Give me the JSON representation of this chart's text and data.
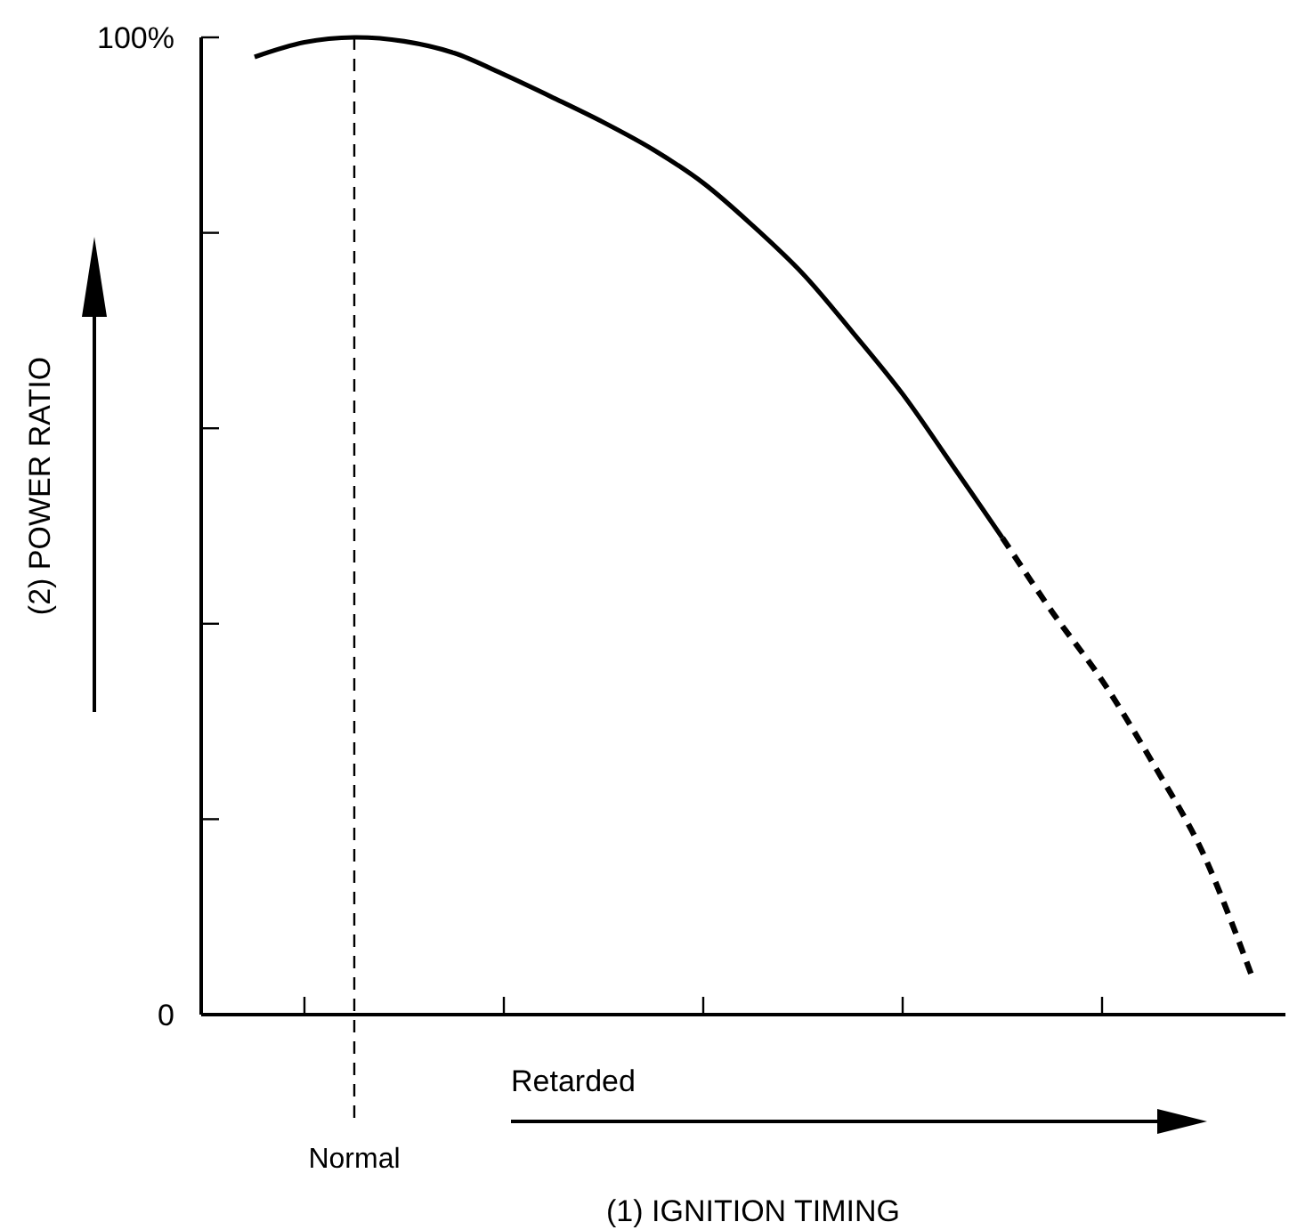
{
  "chart_data": {
    "type": "line",
    "ylabel": "(2) POWER RATIO",
    "categories": [
      null,
      null,
      null,
      null,
      null,
      null,
      null,
      null,
      null,
      null,
      null,
      null,
      null,
      null,
      null,
      null,
      null,
      null,
      null,
      null,
      null
    ],
    "series": [
      {
        "color": "#000000",
        "line_style": "solid",
        "values": [
          98,
          99.5,
          100,
          99.6,
          98.4,
          96.2,
          93.8,
          91.3,
          88.5,
          85.1,
          80.7,
          75.8,
          69.8,
          63.5,
          56.2,
          48.8,
          null,
          null,
          null,
          null,
          null
        ]
      },
      {
        "color": "#000000",
        "line_style": "dashed",
        "values": [
          null,
          null,
          null,
          null,
          null,
          null,
          null,
          null,
          null,
          null,
          null,
          null,
          null,
          null,
          null,
          48.8,
          41.2,
          34.2,
          25.9,
          16.8,
          4
        ]
      }
    ],
    "ylim": [
      0,
      100
    ],
    "yticks": [
      {
        "value": 0,
        "label": "0"
      },
      {
        "value": 20,
        "label": null
      },
      {
        "value": 40,
        "label": null
      },
      {
        "value": 60,
        "label": null
      },
      {
        "value": 80,
        "label": null
      },
      {
        "value": 100,
        "label": "100%"
      }
    ],
    "annotations": [
      "Retarded",
      "(1) IGNITION TIMING",
      "Normal"
    ],
    "grid": false,
    "marker": "none"
  }
}
